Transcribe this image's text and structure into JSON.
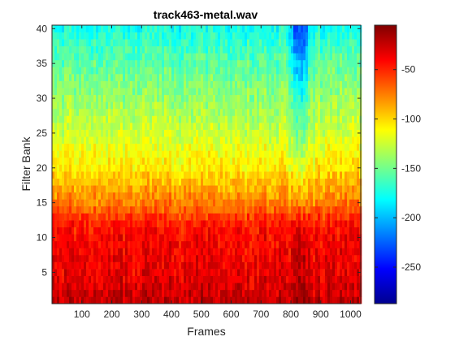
{
  "chart_data": {
    "type": "heatmap",
    "title": "track463-metal.wav",
    "xlabel": "Frames",
    "ylabel": "Filter Bank",
    "xlim": [
      0,
      1034
    ],
    "ylim": [
      0.5,
      40.5
    ],
    "xticks": [
      100,
      200,
      300,
      400,
      500,
      600,
      700,
      800,
      900,
      1000
    ],
    "yticks": [
      5,
      10,
      15,
      20,
      25,
      30,
      35,
      40
    ],
    "n_filter_banks": 40,
    "colormap": "jet",
    "colorbar": {
      "range": [
        -287,
        -5
      ],
      "ticks": [
        -250,
        -200,
        -150,
        -100,
        -50
      ]
    },
    "level_profile": {
      "filter_bank": [
        1,
        5,
        10,
        12,
        15,
        20,
        25,
        30,
        35,
        40
      ],
      "typical_db": [
        -25,
        -35,
        -40,
        -48,
        -75,
        -105,
        -125,
        -140,
        -155,
        -175
      ]
    },
    "quiet_region": {
      "frames": [
        790,
        870
      ],
      "note_db_offset_high_banks": -60
    }
  }
}
